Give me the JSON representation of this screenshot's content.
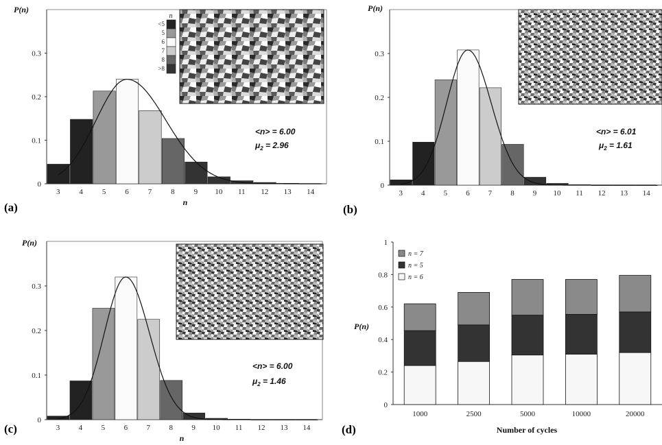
{
  "palette": {
    "lt5": "#222222",
    "n5": "#999999",
    "n6": "#fafafa",
    "n7": "#cccccc",
    "n8": "#666666",
    "gt8": "#333333",
    "d_n7": "#8a8a8a",
    "d_n5": "#333333",
    "d_n6": "#f7f7f7"
  },
  "chart_data": [
    {
      "id": "a",
      "type": "bar",
      "panel_label": "(a)",
      "xlabel": "n",
      "ylabel": "P(n)",
      "x": [
        3,
        4,
        5,
        6,
        7,
        8,
        9,
        10,
        11,
        12,
        13,
        14
      ],
      "values": [
        0.045,
        0.148,
        0.213,
        0.24,
        0.168,
        0.104,
        0.05,
        0.016,
        0.007,
        0.003,
        0.001,
        0.0005
      ],
      "fit_curve": {
        "peak_x": 6,
        "peak_y": 0.24
      },
      "ylim": [
        0,
        0.4
      ],
      "yticks": [
        0,
        0.1,
        0.2,
        0.3
      ],
      "stats": [
        "<n> = 6.00",
        "μ2 = 2.96"
      ],
      "legend": {
        "title": "n",
        "entries": [
          "<5",
          "5",
          "6",
          "7",
          "8",
          ">8"
        ]
      },
      "inset": "grain microstructure map"
    },
    {
      "id": "b",
      "type": "bar",
      "panel_label": "(b)",
      "xlabel": "n",
      "ylabel": "P(n)",
      "x": [
        3,
        4,
        5,
        6,
        7,
        8,
        9,
        10,
        11,
        12,
        13,
        14
      ],
      "values": [
        0.012,
        0.098,
        0.24,
        0.308,
        0.222,
        0.093,
        0.018,
        0.004,
        0.001,
        0,
        0,
        0
      ],
      "fit_curve": {
        "peak_x": 6,
        "peak_y": 0.308
      },
      "ylim": [
        0,
        0.4
      ],
      "yticks": [
        0,
        0.1,
        0.2,
        0.3
      ],
      "stats": [
        "<n> = 6.01",
        "μ2 = 1.61"
      ],
      "inset": "grain microstructure map"
    },
    {
      "id": "c",
      "type": "bar",
      "panel_label": "(c)",
      "xlabel": "n",
      "ylabel": "P(n)",
      "x": [
        3,
        4,
        5,
        6,
        7,
        8,
        9,
        10,
        11,
        12,
        13,
        14
      ],
      "values": [
        0.008,
        0.087,
        0.25,
        0.32,
        0.225,
        0.088,
        0.015,
        0.003,
        0.001,
        0,
        0,
        0
      ],
      "fit_curve": {
        "peak_x": 6,
        "peak_y": 0.32
      },
      "ylim": [
        0,
        0.4
      ],
      "yticks": [
        0,
        0.1,
        0.2,
        0.3
      ],
      "stats": [
        "<n> = 6.00",
        "μ2 = 1.46"
      ],
      "inset": "grain microstructure map"
    },
    {
      "id": "d",
      "type": "bar",
      "stacked": true,
      "panel_label": "(d)",
      "xlabel": "Number of cycles",
      "ylabel": "P(n)",
      "categories": [
        "1000",
        "2500",
        "5000",
        "10000",
        "20000"
      ],
      "series": [
        {
          "name": "n = 6",
          "values": [
            0.24,
            0.265,
            0.305,
            0.31,
            0.32
          ]
        },
        {
          "name": "n = 5",
          "values": [
            0.215,
            0.225,
            0.245,
            0.245,
            0.25
          ]
        },
        {
          "name": "n = 7",
          "values": [
            0.165,
            0.2,
            0.22,
            0.215,
            0.225
          ]
        }
      ],
      "legend_order": [
        "n = 7",
        "n = 5",
        "n = 6"
      ],
      "ylim": [
        0,
        1
      ],
      "yticks": [
        "0",
        "0.2",
        "0.4",
        "0.6",
        "0.8",
        "1"
      ]
    }
  ]
}
